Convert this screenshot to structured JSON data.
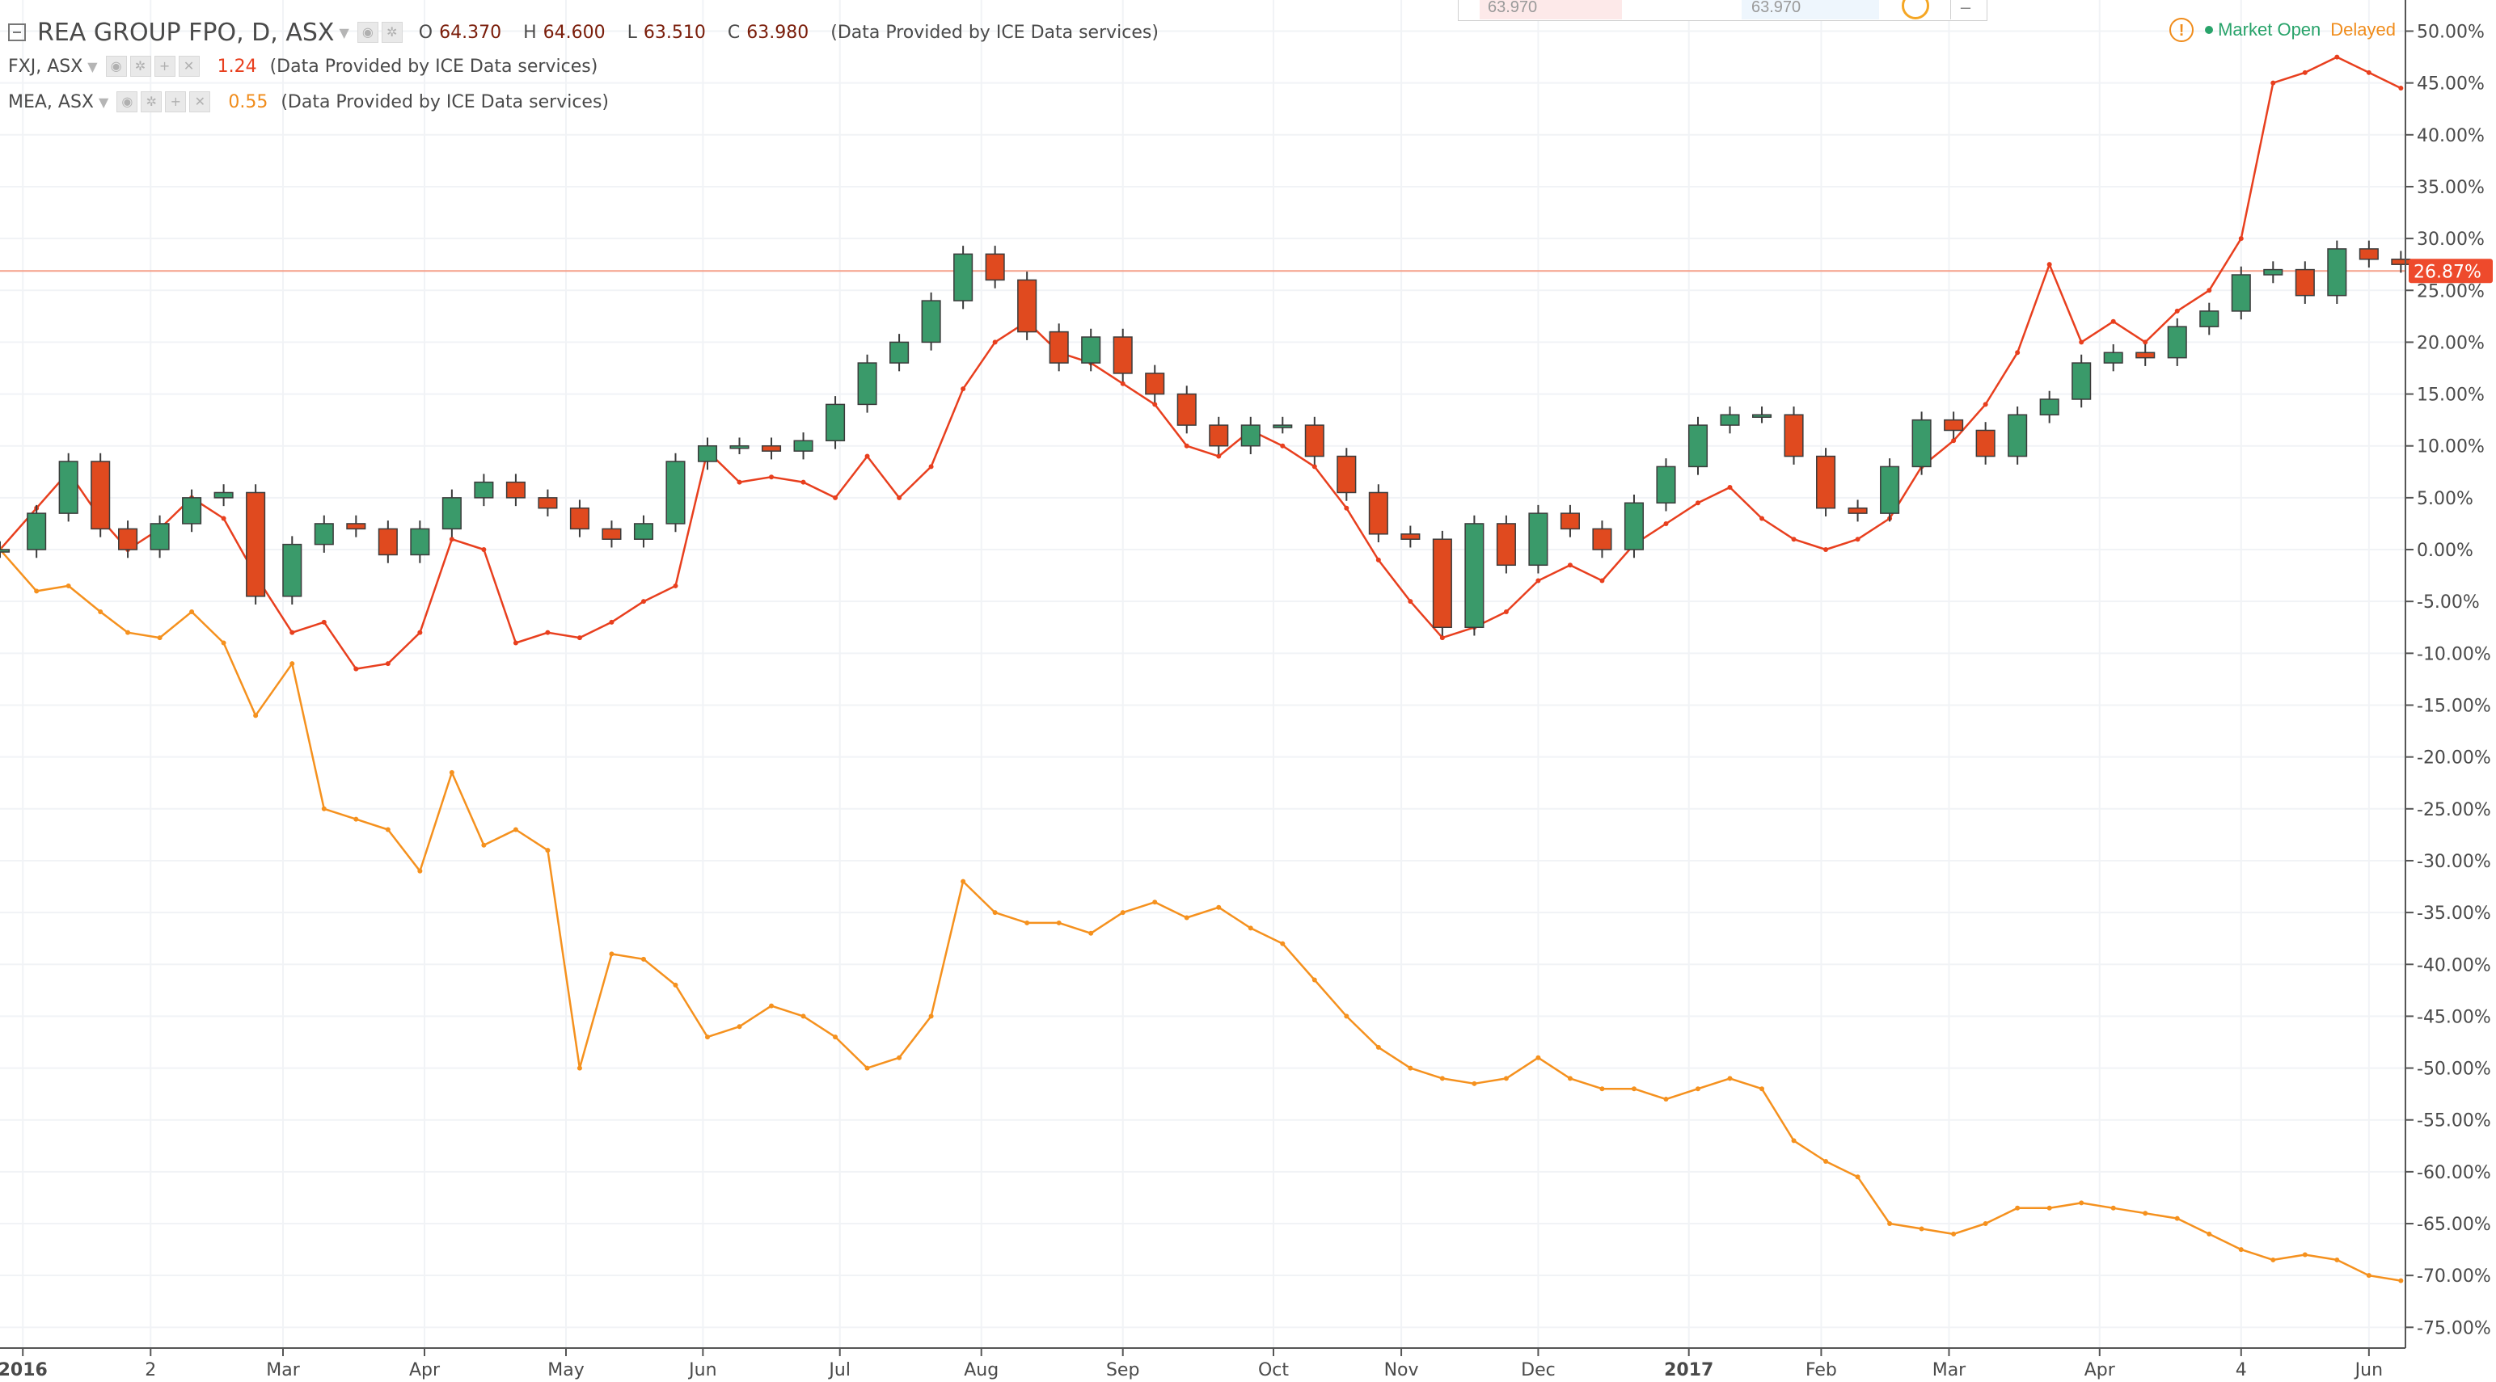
{
  "legend": {
    "main": {
      "title": "REA GROUP FPO, D, ASX",
      "open_label": "O",
      "open": "64.370",
      "high_label": "H",
      "high": "64.600",
      "low_label": "L",
      "low": "63.510",
      "close_label": "C",
      "close": "63.980",
      "provider": "(Data Provided by ICE Data services)"
    },
    "fxj": {
      "symbol": "FXJ, ASX",
      "value": "1.24",
      "provider": "(Data Provided by ICE Data services)"
    },
    "mea": {
      "symbol": "MEA, ASX",
      "value": "0.55",
      "provider": "(Data Provided by ICE Data services)"
    }
  },
  "top_box": {
    "left_value": "63.970",
    "right_value": "63.970"
  },
  "status": {
    "warning": "!",
    "market": "Market Open",
    "delay": "Delayed"
  },
  "colors": {
    "up": "#3a9a6a",
    "down": "#e04a1f",
    "candle_outline": "#3b3b3b",
    "fxj": "#e83f1e",
    "mea": "#f5911e",
    "price_line": "#f5a08a",
    "badge": "#ee4a2c",
    "grid": "#f1f3f6",
    "axis_text": "#4a4a4a"
  },
  "chart_data": {
    "type": "line",
    "y_axis": {
      "unit": "%",
      "range": [
        -77,
        53
      ],
      "ticks": [
        50,
        45,
        40,
        35,
        30,
        25,
        20,
        15,
        10,
        5,
        0,
        -5,
        -10,
        -15,
        -20,
        -25,
        -30,
        -35,
        -40,
        -45,
        -50,
        -55,
        -60,
        -65,
        -70,
        -75
      ],
      "tick_labels": [
        "50.00%",
        "45.00%",
        "40.00%",
        "35.00%",
        "30.00%",
        "25.00%",
        "20.00%",
        "15.00%",
        "10.00%",
        "5.00%",
        "0.00%",
        "-5.00%",
        "-10.00%",
        "-15.00%",
        "-20.00%",
        "-25.00%",
        "-30.00%",
        "-35.00%",
        "-40.00%",
        "-45.00%",
        "-50.00%",
        "-55.00%",
        "-60.00%",
        "-65.00%",
        "-70.00%",
        "-75.00%"
      ]
    },
    "x_axis": {
      "range": [
        "2015-12-30",
        "2017-06-09"
      ],
      "ticks": [
        {
          "date": "2016-01-04",
          "label": "2016",
          "bold": true
        },
        {
          "date": "2016-02-01",
          "label": "2",
          "bold": false
        },
        {
          "date": "2016-03-01",
          "label": "Mar",
          "bold": false
        },
        {
          "date": "2016-04-01",
          "label": "Apr",
          "bold": false
        },
        {
          "date": "2016-05-02",
          "label": "May",
          "bold": false
        },
        {
          "date": "2016-06-01",
          "label": "Jun",
          "bold": false
        },
        {
          "date": "2016-07-01",
          "label": "Jul",
          "bold": false
        },
        {
          "date": "2016-08-01",
          "label": "Aug",
          "bold": false
        },
        {
          "date": "2016-09-01",
          "label": "Sep",
          "bold": false
        },
        {
          "date": "2016-10-04",
          "label": "Oct",
          "bold": false
        },
        {
          "date": "2016-11-01",
          "label": "Nov",
          "bold": false
        },
        {
          "date": "2016-12-01",
          "label": "Dec",
          "bold": false
        },
        {
          "date": "2017-01-03",
          "label": "2017",
          "bold": true
        },
        {
          "date": "2017-02-01",
          "label": "Feb",
          "bold": false
        },
        {
          "date": "2017-03-01",
          "label": "Mar",
          "bold": false
        },
        {
          "date": "2017-04-03",
          "label": "Apr",
          "bold": false
        },
        {
          "date": "2017-05-04",
          "label": "4",
          "bold": false
        },
        {
          "date": "2017-06-01",
          "label": "Jun",
          "bold": false
        }
      ]
    },
    "current_value": 26.87,
    "current_label": "26.87%",
    "series": [
      {
        "name": "REA GROUP FPO",
        "style": "candlestick",
        "points": [
          [
            "2015-12-30",
            0.0
          ],
          [
            "2016-01-07",
            3.5
          ],
          [
            "2016-01-14",
            8.5
          ],
          [
            "2016-01-21",
            2.0
          ],
          [
            "2016-01-27",
            0.0
          ],
          [
            "2016-02-03",
            2.5
          ],
          [
            "2016-02-10",
            5.0
          ],
          [
            "2016-02-17",
            5.5
          ],
          [
            "2016-02-24",
            -4.5
          ],
          [
            "2016-03-03",
            0.5
          ],
          [
            "2016-03-10",
            2.5
          ],
          [
            "2016-03-17",
            2.0
          ],
          [
            "2016-03-24",
            -0.5
          ],
          [
            "2016-03-31",
            2.0
          ],
          [
            "2016-04-07",
            5.0
          ],
          [
            "2016-04-14",
            6.5
          ],
          [
            "2016-04-21",
            5.0
          ],
          [
            "2016-04-28",
            4.0
          ],
          [
            "2016-05-05",
            2.0
          ],
          [
            "2016-05-12",
            1.0
          ],
          [
            "2016-05-19",
            2.5
          ],
          [
            "2016-05-26",
            8.5
          ],
          [
            "2016-06-02",
            10.0
          ],
          [
            "2016-06-09",
            10.0
          ],
          [
            "2016-06-16",
            9.5
          ],
          [
            "2016-06-23",
            10.5
          ],
          [
            "2016-06-30",
            14.0
          ],
          [
            "2016-07-07",
            18.0
          ],
          [
            "2016-07-14",
            20.0
          ],
          [
            "2016-07-21",
            24.0
          ],
          [
            "2016-07-28",
            28.5
          ],
          [
            "2016-08-04",
            26.0
          ],
          [
            "2016-08-11",
            21.0
          ],
          [
            "2016-08-18",
            18.0
          ],
          [
            "2016-08-25",
            20.5
          ],
          [
            "2016-09-01",
            17.0
          ],
          [
            "2016-09-08",
            15.0
          ],
          [
            "2016-09-15",
            12.0
          ],
          [
            "2016-09-22",
            10.0
          ],
          [
            "2016-09-29",
            12.0
          ],
          [
            "2016-10-06",
            12.0
          ],
          [
            "2016-10-13",
            9.0
          ],
          [
            "2016-10-20",
            5.5
          ],
          [
            "2016-10-27",
            1.5
          ],
          [
            "2016-11-03",
            1.0
          ],
          [
            "2016-11-10",
            -7.5
          ],
          [
            "2016-11-17",
            2.5
          ],
          [
            "2016-11-24",
            -1.5
          ],
          [
            "2016-12-01",
            3.5
          ],
          [
            "2016-12-08",
            2.0
          ],
          [
            "2016-12-15",
            0.0
          ],
          [
            "2016-12-22",
            4.5
          ],
          [
            "2016-12-29",
            8.0
          ],
          [
            "2017-01-05",
            12.0
          ],
          [
            "2017-01-12",
            13.0
          ],
          [
            "2017-01-19",
            13.0
          ],
          [
            "2017-01-26",
            9.0
          ],
          [
            "2017-02-02",
            4.0
          ],
          [
            "2017-02-09",
            3.5
          ],
          [
            "2017-02-16",
            8.0
          ],
          [
            "2017-02-23",
            12.5
          ],
          [
            "2017-03-02",
            11.5
          ],
          [
            "2017-03-09",
            9.0
          ],
          [
            "2017-03-16",
            13.0
          ],
          [
            "2017-03-23",
            14.5
          ],
          [
            "2017-03-30",
            18.0
          ],
          [
            "2017-04-06",
            19.0
          ],
          [
            "2017-04-13",
            18.5
          ],
          [
            "2017-04-20",
            21.5
          ],
          [
            "2017-04-27",
            23.0
          ],
          [
            "2017-05-04",
            26.5
          ],
          [
            "2017-05-11",
            27.0
          ],
          [
            "2017-05-18",
            24.5
          ],
          [
            "2017-05-25",
            29.0
          ],
          [
            "2017-06-01",
            28.0
          ],
          [
            "2017-06-08",
            27.5
          ]
        ]
      },
      {
        "name": "FXJ, ASX",
        "style": "line",
        "color": "#e83f1e",
        "points": [
          [
            "2015-12-30",
            0.0
          ],
          [
            "2016-01-07",
            4.0
          ],
          [
            "2016-01-14",
            7.5
          ],
          [
            "2016-01-21",
            3.0
          ],
          [
            "2016-01-27",
            0.0
          ],
          [
            "2016-02-03",
            2.0
          ],
          [
            "2016-02-10",
            5.0
          ],
          [
            "2016-02-17",
            3.0
          ],
          [
            "2016-02-24",
            -2.5
          ],
          [
            "2016-03-03",
            -8.0
          ],
          [
            "2016-03-10",
            -7.0
          ],
          [
            "2016-03-17",
            -11.5
          ],
          [
            "2016-03-24",
            -11.0
          ],
          [
            "2016-03-31",
            -8.0
          ],
          [
            "2016-04-07",
            1.0
          ],
          [
            "2016-04-14",
            0.0
          ],
          [
            "2016-04-21",
            -9.0
          ],
          [
            "2016-04-28",
            -8.0
          ],
          [
            "2016-05-05",
            -8.5
          ],
          [
            "2016-05-12",
            -7.0
          ],
          [
            "2016-05-19",
            -5.0
          ],
          [
            "2016-05-26",
            -3.5
          ],
          [
            "2016-06-02",
            9.5
          ],
          [
            "2016-06-09",
            6.5
          ],
          [
            "2016-06-16",
            7.0
          ],
          [
            "2016-06-23",
            6.5
          ],
          [
            "2016-06-30",
            5.0
          ],
          [
            "2016-07-07",
            9.0
          ],
          [
            "2016-07-14",
            5.0
          ],
          [
            "2016-07-21",
            8.0
          ],
          [
            "2016-07-28",
            15.5
          ],
          [
            "2016-08-04",
            20.0
          ],
          [
            "2016-08-11",
            22.0
          ],
          [
            "2016-08-18",
            19.0
          ],
          [
            "2016-08-25",
            18.0
          ],
          [
            "2016-09-01",
            16.0
          ],
          [
            "2016-09-08",
            14.0
          ],
          [
            "2016-09-15",
            10.0
          ],
          [
            "2016-09-22",
            9.0
          ],
          [
            "2016-09-29",
            11.5
          ],
          [
            "2016-10-06",
            10.0
          ],
          [
            "2016-10-13",
            8.0
          ],
          [
            "2016-10-20",
            4.0
          ],
          [
            "2016-10-27",
            -1.0
          ],
          [
            "2016-11-03",
            -5.0
          ],
          [
            "2016-11-10",
            -8.5
          ],
          [
            "2016-11-17",
            -7.5
          ],
          [
            "2016-11-24",
            -6.0
          ],
          [
            "2016-12-01",
            -3.0
          ],
          [
            "2016-12-08",
            -1.5
          ],
          [
            "2016-12-15",
            -3.0
          ],
          [
            "2016-12-22",
            0.5
          ],
          [
            "2016-12-29",
            2.5
          ],
          [
            "2017-01-05",
            4.5
          ],
          [
            "2017-01-12",
            6.0
          ],
          [
            "2017-01-19",
            3.0
          ],
          [
            "2017-01-26",
            1.0
          ],
          [
            "2017-02-02",
            0.0
          ],
          [
            "2017-02-09",
            1.0
          ],
          [
            "2017-02-16",
            3.0
          ],
          [
            "2017-02-23",
            8.0
          ],
          [
            "2017-03-02",
            10.5
          ],
          [
            "2017-03-09",
            14.0
          ],
          [
            "2017-03-16",
            19.0
          ],
          [
            "2017-03-23",
            27.5
          ],
          [
            "2017-03-30",
            20.0
          ],
          [
            "2017-04-06",
            22.0
          ],
          [
            "2017-04-13",
            20.0
          ],
          [
            "2017-04-20",
            23.0
          ],
          [
            "2017-04-27",
            25.0
          ],
          [
            "2017-05-04",
            30.0
          ],
          [
            "2017-05-11",
            45.0
          ],
          [
            "2017-05-18",
            46.0
          ],
          [
            "2017-05-25",
            47.5
          ],
          [
            "2017-06-01",
            46.0
          ],
          [
            "2017-06-08",
            44.5
          ]
        ]
      },
      {
        "name": "MEA, ASX",
        "style": "line",
        "color": "#f5911e",
        "points": [
          [
            "2015-12-30",
            0.0
          ],
          [
            "2016-01-07",
            -4.0
          ],
          [
            "2016-01-14",
            -3.5
          ],
          [
            "2016-01-21",
            -6.0
          ],
          [
            "2016-01-27",
            -8.0
          ],
          [
            "2016-02-03",
            -8.5
          ],
          [
            "2016-02-10",
            -6.0
          ],
          [
            "2016-02-17",
            -9.0
          ],
          [
            "2016-02-24",
            -16.0
          ],
          [
            "2016-03-03",
            -11.0
          ],
          [
            "2016-03-10",
            -25.0
          ],
          [
            "2016-03-17",
            -26.0
          ],
          [
            "2016-03-24",
            -27.0
          ],
          [
            "2016-03-31",
            -31.0
          ],
          [
            "2016-04-07",
            -21.5
          ],
          [
            "2016-04-14",
            -28.5
          ],
          [
            "2016-04-21",
            -27.0
          ],
          [
            "2016-04-28",
            -29.0
          ],
          [
            "2016-05-05",
            -50.0
          ],
          [
            "2016-05-12",
            -39.0
          ],
          [
            "2016-05-19",
            -39.5
          ],
          [
            "2016-05-26",
            -42.0
          ],
          [
            "2016-06-02",
            -47.0
          ],
          [
            "2016-06-09",
            -46.0
          ],
          [
            "2016-06-16",
            -44.0
          ],
          [
            "2016-06-23",
            -45.0
          ],
          [
            "2016-06-30",
            -47.0
          ],
          [
            "2016-07-07",
            -50.0
          ],
          [
            "2016-07-14",
            -49.0
          ],
          [
            "2016-07-21",
            -45.0
          ],
          [
            "2016-07-28",
            -32.0
          ],
          [
            "2016-08-04",
            -35.0
          ],
          [
            "2016-08-11",
            -36.0
          ],
          [
            "2016-08-18",
            -36.0
          ],
          [
            "2016-08-25",
            -37.0
          ],
          [
            "2016-09-01",
            -35.0
          ],
          [
            "2016-09-08",
            -34.0
          ],
          [
            "2016-09-15",
            -35.5
          ],
          [
            "2016-09-22",
            -34.5
          ],
          [
            "2016-09-29",
            -36.5
          ],
          [
            "2016-10-06",
            -38.0
          ],
          [
            "2016-10-13",
            -41.5
          ],
          [
            "2016-10-20",
            -45.0
          ],
          [
            "2016-10-27",
            -48.0
          ],
          [
            "2016-11-03",
            -50.0
          ],
          [
            "2016-11-10",
            -51.0
          ],
          [
            "2016-11-17",
            -51.5
          ],
          [
            "2016-11-24",
            -51.0
          ],
          [
            "2016-12-01",
            -49.0
          ],
          [
            "2016-12-08",
            -51.0
          ],
          [
            "2016-12-15",
            -52.0
          ],
          [
            "2016-12-22",
            -52.0
          ],
          [
            "2016-12-29",
            -53.0
          ],
          [
            "2017-01-05",
            -52.0
          ],
          [
            "2017-01-12",
            -51.0
          ],
          [
            "2017-01-19",
            -52.0
          ],
          [
            "2017-01-26",
            -57.0
          ],
          [
            "2017-02-02",
            -59.0
          ],
          [
            "2017-02-09",
            -60.5
          ],
          [
            "2017-02-16",
            -65.0
          ],
          [
            "2017-02-23",
            -65.5
          ],
          [
            "2017-03-02",
            -66.0
          ],
          [
            "2017-03-09",
            -65.0
          ],
          [
            "2017-03-16",
            -63.5
          ],
          [
            "2017-03-23",
            -63.5
          ],
          [
            "2017-03-30",
            -63.0
          ],
          [
            "2017-04-06",
            -63.5
          ],
          [
            "2017-04-13",
            -64.0
          ],
          [
            "2017-04-20",
            -64.5
          ],
          [
            "2017-04-27",
            -66.0
          ],
          [
            "2017-05-04",
            -67.5
          ],
          [
            "2017-05-11",
            -68.5
          ],
          [
            "2017-05-18",
            -68.0
          ],
          [
            "2017-05-25",
            -68.5
          ],
          [
            "2017-06-01",
            -70.0
          ],
          [
            "2017-06-08",
            -70.5
          ]
        ]
      }
    ]
  }
}
